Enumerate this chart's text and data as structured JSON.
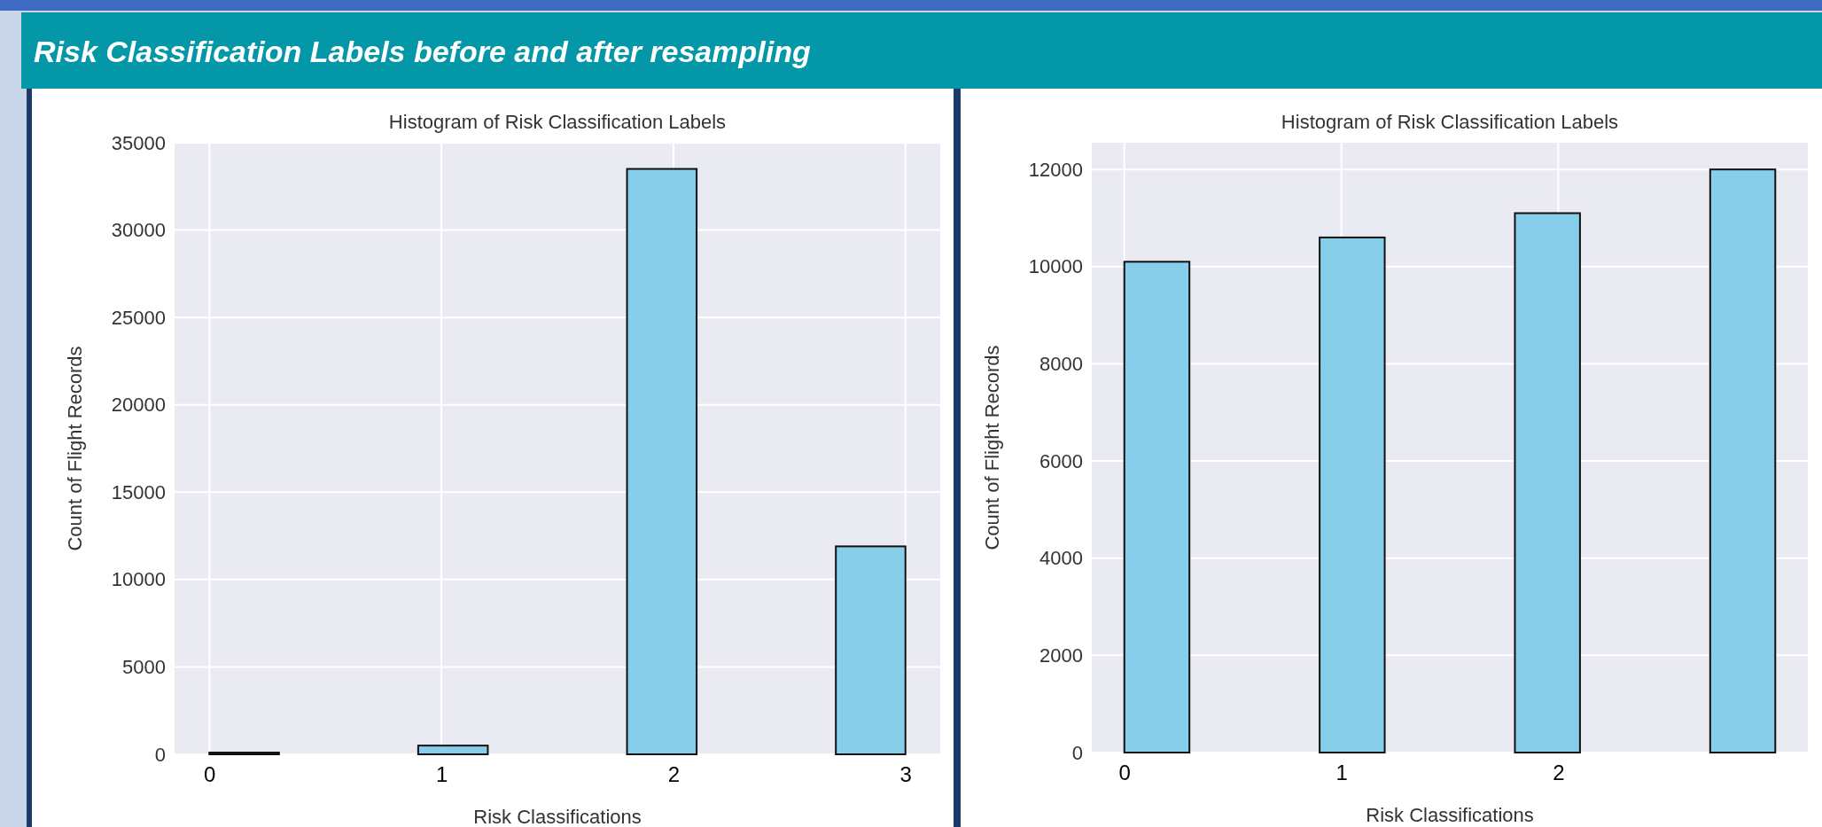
{
  "chart_data": [
    {
      "type": "histogram",
      "title": "Histogram of Risk Classification Labels",
      "xlabel": "Risk Classifications",
      "ylabel": "Count of Flight Records",
      "annotations": [
        "Risk Classification Labels before and after resampling"
      ],
      "bins": [
        0,
        0.3,
        0.6,
        0.9,
        1.2,
        1.5,
        1.8,
        2.1,
        2.4,
        2.7,
        3.0
      ],
      "values": [
        100,
        0,
        0,
        500,
        0,
        0,
        33500,
        0,
        0,
        11900
      ],
      "color": "#87ceeb",
      "xlim": [
        -0.15,
        3.15
      ],
      "xticks": [
        0,
        1,
        2,
        3
      ],
      "ylim": [
        0,
        35000
      ],
      "yticks": [
        0,
        5000,
        10000,
        15000,
        20000,
        25000,
        30000,
        35000
      ],
      "grid": true
    },
    {
      "type": "histogram",
      "title": "Histogram of Risk Classification Labels",
      "xlabel": "Risk Classifications",
      "ylabel": "Count of Flight Records",
      "bins": [
        0,
        0.3,
        0.6,
        0.9,
        1.2,
        1.5,
        1.8,
        2.1,
        2.4,
        2.7,
        3.0
      ],
      "values": [
        10100,
        0,
        0,
        10600,
        0,
        0,
        11100,
        0,
        0,
        12000
      ],
      "color": "#87ceeb",
      "xlim": [
        -0.15,
        3.15
      ],
      "xticks": [
        0,
        1,
        2
      ],
      "ylim": [
        0,
        12550
      ],
      "yticks": [
        0,
        2000,
        4000,
        6000,
        8000,
        10000,
        12000
      ],
      "grid": true
    }
  ]
}
